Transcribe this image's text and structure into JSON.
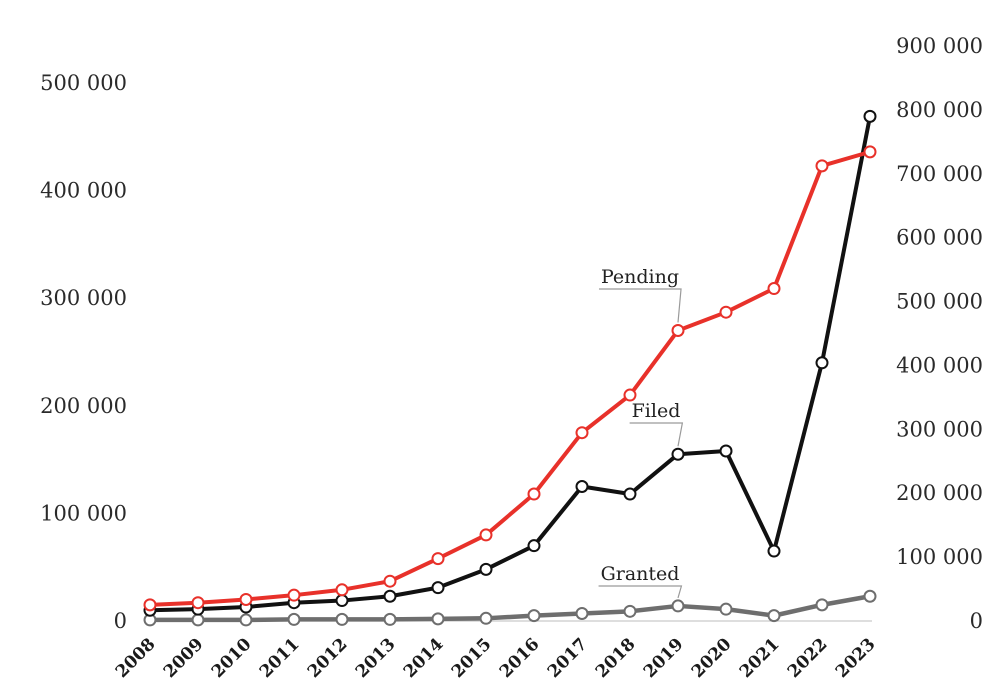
{
  "chart_data": {
    "type": "line",
    "x": [
      "2008",
      "2009",
      "2010",
      "2011",
      "2012",
      "2013",
      "2014",
      "2015",
      "2016",
      "2017",
      "2018",
      "2019",
      "2020",
      "2021",
      "2022",
      "2023"
    ],
    "series": [
      {
        "name": "Pending",
        "axis": "left",
        "color": "#e8312a",
        "values": [
          15000,
          17000,
          20000,
          24000,
          29000,
          37000,
          58000,
          80000,
          118000,
          175000,
          210000,
          270000,
          287000,
          309000,
          423000,
          436000
        ]
      },
      {
        "name": "Filed",
        "axis": "left",
        "color": "#111111",
        "values": [
          10000,
          11000,
          13000,
          17000,
          19000,
          23000,
          31000,
          48000,
          70000,
          125000,
          118000,
          155000,
          158000,
          65000,
          240000,
          469000
        ]
      },
      {
        "name": "Granted",
        "axis": "left",
        "color": "#6e6e6e",
        "values": [
          1000,
          1000,
          1000,
          1500,
          1500,
          1500,
          2000,
          2500,
          5000,
          7000,
          9000,
          14000,
          11000,
          5000,
          15000,
          23000
        ]
      }
    ],
    "y_left": {
      "min": 0,
      "max": 500000,
      "ticks": [
        0,
        100000,
        200000,
        300000,
        400000,
        500000
      ],
      "tick_labels": [
        "0",
        "100 000",
        "200 000",
        "300 000",
        "400 000",
        "500 000"
      ]
    },
    "y_right": {
      "min": 0,
      "max": 900000,
      "ticks": [
        0,
        100000,
        200000,
        300000,
        400000,
        500000,
        600000,
        700000,
        800000,
        900000
      ],
      "tick_labels": [
        "0",
        "100 000",
        "200 000",
        "300 000",
        "400 000",
        "500 000",
        "600 000",
        "700 000",
        "800 000",
        "900 000"
      ]
    },
    "grid": false,
    "legend": "inline labels"
  }
}
